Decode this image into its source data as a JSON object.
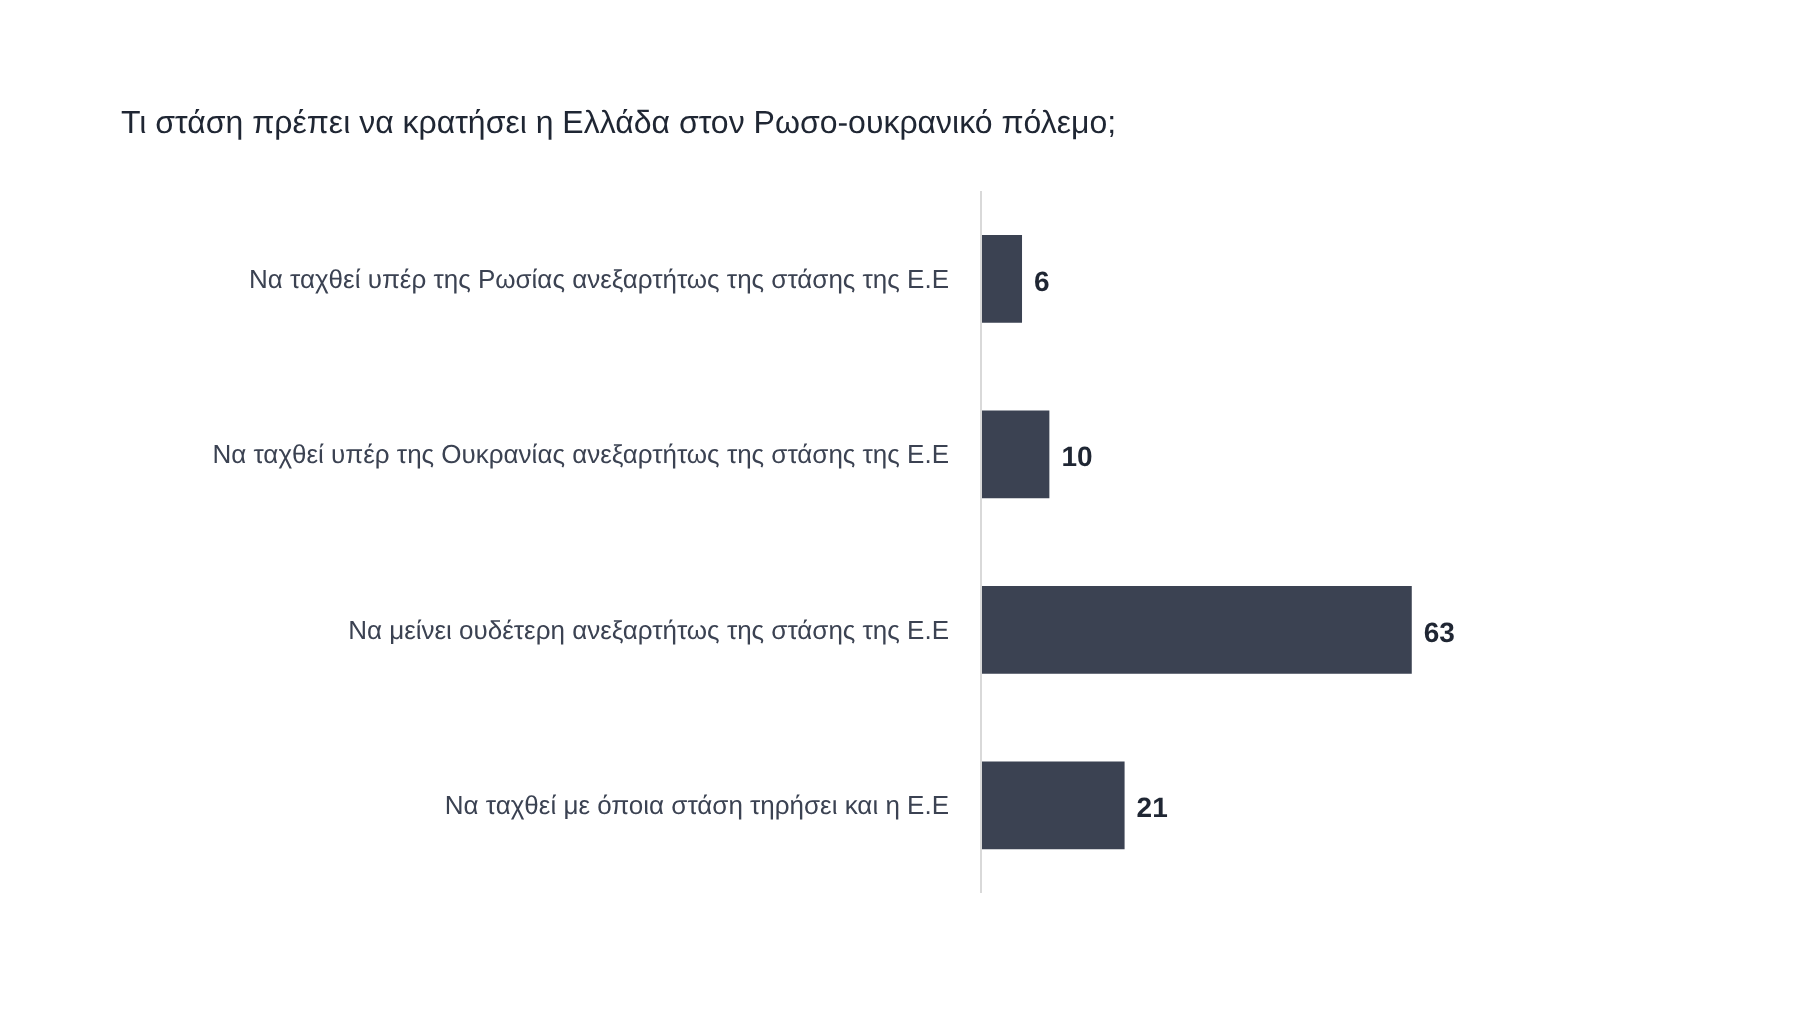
{
  "chart_data": {
    "type": "bar",
    "orientation": "horizontal",
    "title": "Τι στάση πρέπει να κρατήσει η Ελλάδα στον Ρωσο-ουκρανικό πόλεμο;",
    "categories": [
      "Να ταχθεί υπέρ της Ρωσίας ανεξαρτήτως της στάσης της Ε.Ε",
      "Να ταχθεί υπέρ της Ουκρανίας ανεξαρτήτως της στάσης της Ε.Ε",
      "Να μείνει ουδέτερη ανεξαρτήτως της στάσης της Ε.Ε",
      "Να ταχθεί με όποια στάση τηρήσει και η Ε.Ε"
    ],
    "values": [
      6,
      10,
      63,
      21
    ],
    "color": "#3b4252",
    "data_labels": true
  }
}
